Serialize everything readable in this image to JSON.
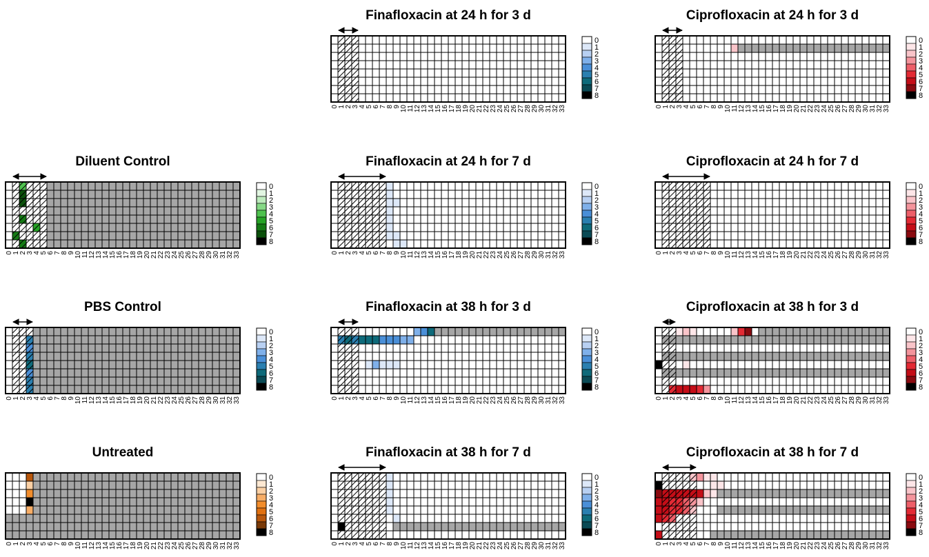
{
  "palettes": {
    "blue": [
      "#ffffff",
      "#dde8f8",
      "#b8d0f2",
      "#7fb0ea",
      "#4a8fd8",
      "#2a7fb0",
      "#0e6a7a",
      "#0a4a55",
      "#000000"
    ],
    "red": [
      "#ffffff",
      "#fde6e8",
      "#f9c4c9",
      "#f4949c",
      "#ee5f69",
      "#e32a34",
      "#c40d17",
      "#8a0a10",
      "#000000"
    ],
    "green": [
      "#ffffff",
      "#e2f6e2",
      "#bdebbd",
      "#86d986",
      "#4fc24f",
      "#26a326",
      "#157a15",
      "#0b500b",
      "#000000"
    ],
    "orange": [
      "#ffffff",
      "#fde8d2",
      "#fbd0a4",
      "#f7ad66",
      "#f28d2c",
      "#e07010",
      "#b8570c",
      "#7a3a08",
      "#000000"
    ],
    "excluded": "#a6a6a6"
  },
  "chart_data": [
    {
      "type": "heatmap",
      "title": "Finafloxacin at 24 h for 3 d",
      "palette": "blue",
      "cols": 34,
      "rows": 8,
      "treat": [
        1,
        3
      ],
      "legend_levels": [
        "0",
        "1",
        "2",
        "3",
        "4",
        "5",
        "6",
        "7",
        "8"
      ],
      "x_ticks": [
        "0",
        "1",
        "2",
        "3",
        "4",
        "5",
        "6",
        "7",
        "8",
        "9",
        "10",
        "11",
        "12",
        "13",
        "14",
        "15",
        "16",
        "17",
        "18",
        "19",
        "20",
        "21",
        "22",
        "23",
        "24",
        "25",
        "26",
        "27",
        "28",
        "29",
        "30",
        "31",
        "32",
        "33"
      ],
      "excluded": [],
      "cells": []
    },
    {
      "type": "heatmap",
      "title": "Ciprofloxacin at 24 h for 3 d",
      "palette": "red",
      "cols": 34,
      "rows": 8,
      "treat": [
        1,
        3
      ],
      "legend_levels": [
        "0",
        "1",
        "2",
        "3",
        "4",
        "5",
        "6",
        "7",
        "8"
      ],
      "x_ticks": [
        "0",
        "1",
        "2",
        "3",
        "4",
        "5",
        "6",
        "7",
        "8",
        "9",
        "10",
        "11",
        "12",
        "13",
        "14",
        "15",
        "16",
        "17",
        "18",
        "19",
        "20",
        "21",
        "22",
        "23",
        "24",
        "25",
        "26",
        "27",
        "28",
        "29",
        "30",
        "31",
        "32",
        "33"
      ],
      "excluded": [
        [
          1,
          12,
          33
        ]
      ],
      "cells": [
        [
          1,
          11,
          2
        ]
      ]
    },
    {
      "type": "heatmap",
      "title": "Diluent Control",
      "palette": "green",
      "cols": 34,
      "rows": 8,
      "treat": [
        1,
        5
      ],
      "legend_levels": [
        "0",
        "1",
        "2",
        "3",
        "4",
        "5",
        "6",
        "7",
        "8"
      ],
      "x_ticks": [
        "0",
        "1",
        "2",
        "3",
        "4",
        "5",
        "6",
        "7",
        "8",
        "9",
        "10",
        "11",
        "12",
        "13",
        "14",
        "15",
        "16",
        "17",
        "18",
        "19",
        "20",
        "21",
        "22",
        "23",
        "24",
        "25",
        "26",
        "27",
        "28",
        "29",
        "30",
        "31",
        "32",
        "33"
      ],
      "excluded": [
        [
          0,
          6,
          33
        ],
        [
          1,
          6,
          33
        ],
        [
          2,
          6,
          33
        ],
        [
          3,
          6,
          33
        ],
        [
          4,
          6,
          33
        ],
        [
          5,
          6,
          33
        ],
        [
          6,
          6,
          33
        ],
        [
          7,
          6,
          33
        ]
      ],
      "cells": [
        [
          0,
          2,
          4
        ],
        [
          1,
          2,
          7
        ],
        [
          2,
          2,
          7
        ],
        [
          4,
          2,
          6
        ],
        [
          5,
          4,
          5
        ],
        [
          6,
          1,
          6
        ],
        [
          7,
          2,
          6
        ]
      ]
    },
    {
      "type": "heatmap",
      "title": "Finafloxacin at 24 h for 7 d",
      "palette": "blue",
      "cols": 34,
      "rows": 8,
      "treat": [
        1,
        7
      ],
      "legend_levels": [
        "0",
        "1",
        "2",
        "3",
        "4",
        "5",
        "6",
        "7",
        "8"
      ],
      "x_ticks": [
        "0",
        "1",
        "2",
        "3",
        "4",
        "5",
        "6",
        "7",
        "8",
        "9",
        "10",
        "11",
        "12",
        "13",
        "14",
        "15",
        "16",
        "17",
        "18",
        "19",
        "20",
        "21",
        "22",
        "23",
        "24",
        "25",
        "26",
        "27",
        "28",
        "29",
        "30",
        "31",
        "32",
        "33"
      ],
      "excluded": [],
      "cells": [
        [
          0,
          8,
          1
        ],
        [
          1,
          8,
          1
        ],
        [
          2,
          8,
          1
        ],
        [
          2,
          9,
          1
        ],
        [
          3,
          8,
          1
        ],
        [
          4,
          8,
          1
        ],
        [
          5,
          8,
          1
        ],
        [
          6,
          8,
          1
        ],
        [
          6,
          9,
          1
        ],
        [
          7,
          9,
          1
        ],
        [
          7,
          10,
          1
        ]
      ]
    },
    {
      "type": "heatmap",
      "title": "Ciprofloxacin at 24 h for 7 d",
      "palette": "red",
      "cols": 34,
      "rows": 8,
      "treat": [
        1,
        7
      ],
      "legend_levels": [
        "0",
        "1",
        "2",
        "3",
        "4",
        "5",
        "6",
        "7",
        "8"
      ],
      "x_ticks": [
        "0",
        "1",
        "2",
        "3",
        "4",
        "5",
        "6",
        "7",
        "8",
        "9",
        "10",
        "11",
        "12",
        "13",
        "14",
        "15",
        "16",
        "17",
        "18",
        "19",
        "20",
        "21",
        "22",
        "23",
        "24",
        "25",
        "26",
        "27",
        "28",
        "29",
        "30",
        "31",
        "32",
        "33"
      ],
      "excluded": [],
      "cells": []
    },
    {
      "type": "heatmap",
      "title": "PBS Control",
      "palette": "blue",
      "cols": 34,
      "rows": 8,
      "treat": [
        1,
        3
      ],
      "legend_levels": [
        "0",
        "1",
        "2",
        "3",
        "4",
        "5",
        "6",
        "7",
        "8"
      ],
      "x_ticks": [
        "0",
        "1",
        "2",
        "3",
        "4",
        "5",
        "6",
        "7",
        "8",
        "9",
        "10",
        "11",
        "12",
        "13",
        "14",
        "15",
        "16",
        "17",
        "18",
        "19",
        "20",
        "21",
        "22",
        "23",
        "24",
        "25",
        "26",
        "27",
        "28",
        "29",
        "30",
        "31",
        "32",
        "33"
      ],
      "excluded": [
        [
          0,
          4,
          33
        ],
        [
          1,
          4,
          33
        ],
        [
          2,
          4,
          33
        ],
        [
          3,
          4,
          33
        ],
        [
          4,
          4,
          33
        ],
        [
          5,
          4,
          33
        ],
        [
          6,
          4,
          33
        ],
        [
          7,
          4,
          33
        ]
      ],
      "cells": [
        [
          1,
          3,
          5
        ],
        [
          2,
          3,
          4
        ],
        [
          3,
          3,
          5
        ],
        [
          4,
          3,
          6
        ],
        [
          5,
          3,
          4
        ],
        [
          6,
          3,
          5
        ],
        [
          7,
          3,
          5
        ]
      ]
    },
    {
      "type": "heatmap",
      "title": "Finafloxacin at 38 h for 3 d",
      "palette": "blue",
      "cols": 34,
      "rows": 8,
      "treat": [
        1,
        3
      ],
      "legend_levels": [
        "0",
        "1",
        "2",
        "3",
        "4",
        "5",
        "6",
        "7",
        "8"
      ],
      "x_ticks": [
        "0",
        "1",
        "2",
        "3",
        "4",
        "5",
        "6",
        "7",
        "8",
        "9",
        "10",
        "11",
        "12",
        "13",
        "14",
        "15",
        "16",
        "17",
        "18",
        "19",
        "20",
        "21",
        "22",
        "23",
        "24",
        "25",
        "26",
        "27",
        "28",
        "29",
        "30",
        "31",
        "32",
        "33"
      ],
      "excluded": [
        [
          0,
          15,
          33
        ]
      ],
      "cells": [
        [
          0,
          12,
          3
        ],
        [
          0,
          13,
          4
        ],
        [
          0,
          14,
          6
        ],
        [
          1,
          1,
          5
        ],
        [
          1,
          2,
          6
        ],
        [
          1,
          3,
          5
        ],
        [
          1,
          4,
          6
        ],
        [
          1,
          5,
          6
        ],
        [
          1,
          6,
          6
        ],
        [
          1,
          7,
          4
        ],
        [
          1,
          8,
          4
        ],
        [
          1,
          9,
          4
        ],
        [
          1,
          10,
          3
        ],
        [
          1,
          11,
          3
        ],
        [
          4,
          5,
          1
        ],
        [
          4,
          6,
          3
        ],
        [
          4,
          7,
          1
        ],
        [
          4,
          8,
          1
        ],
        [
          4,
          9,
          1
        ]
      ]
    },
    {
      "type": "heatmap",
      "title": "Ciprofloxacin at 38 h for 3 d",
      "palette": "red",
      "cols": 34,
      "rows": 8,
      "treat": [
        1,
        2
      ],
      "legend_levels": [
        "0",
        "1",
        "2",
        "3",
        "4",
        "5",
        "6",
        "7",
        "8"
      ],
      "x_ticks": [
        "0",
        "1",
        "2",
        "3",
        "4",
        "5",
        "6",
        "7",
        "8",
        "9",
        "10",
        "11",
        "12",
        "13",
        "14",
        "15",
        "16",
        "17",
        "18",
        "19",
        "20",
        "21",
        "22",
        "23",
        "24",
        "25",
        "26",
        "27",
        "28",
        "29",
        "30",
        "31",
        "32",
        "33"
      ],
      "excluded": [
        [
          0,
          15,
          33
        ],
        [
          1,
          1,
          33
        ],
        [
          3,
          1,
          33
        ],
        [
          5,
          1,
          33
        ]
      ],
      "cells": [
        [
          0,
          3,
          1
        ],
        [
          0,
          4,
          2
        ],
        [
          0,
          5,
          1
        ],
        [
          0,
          11,
          2
        ],
        [
          0,
          12,
          5
        ],
        [
          0,
          13,
          7
        ],
        [
          4,
          0,
          8
        ],
        [
          4,
          4,
          1
        ],
        [
          7,
          2,
          5
        ],
        [
          7,
          3,
          6
        ],
        [
          7,
          4,
          6
        ],
        [
          7,
          5,
          6
        ],
        [
          7,
          6,
          5
        ],
        [
          7,
          7,
          3
        ]
      ]
    },
    {
      "type": "heatmap",
      "title": "Untreated",
      "palette": "orange",
      "cols": 34,
      "rows": 8,
      "treat": null,
      "legend_levels": [
        "0",
        "1",
        "2",
        "3",
        "4",
        "5",
        "6",
        "7",
        "8"
      ],
      "x_ticks": [
        "0",
        "1",
        "2",
        "3",
        "4",
        "5",
        "6",
        "7",
        "8",
        "9",
        "10",
        "11",
        "12",
        "13",
        "14",
        "15",
        "16",
        "17",
        "18",
        "19",
        "20",
        "21",
        "22",
        "23",
        "24",
        "25",
        "26",
        "27",
        "28",
        "29",
        "30",
        "31",
        "32",
        "33"
      ],
      "excluded": [
        [
          0,
          4,
          33
        ],
        [
          1,
          4,
          33
        ],
        [
          2,
          4,
          33
        ],
        [
          3,
          4,
          33
        ],
        [
          4,
          4,
          33
        ],
        [
          5,
          0,
          33
        ],
        [
          6,
          0,
          33
        ],
        [
          7,
          0,
          33
        ]
      ],
      "cells": [
        [
          0,
          3,
          6
        ],
        [
          1,
          3,
          2
        ],
        [
          2,
          3,
          4
        ],
        [
          3,
          3,
          8
        ],
        [
          4,
          3,
          3
        ]
      ]
    },
    {
      "type": "heatmap",
      "title": "Finafloxacin at 38 h for 7 d",
      "palette": "blue",
      "cols": 34,
      "rows": 8,
      "treat": [
        1,
        7
      ],
      "legend_levels": [
        "0",
        "1",
        "2",
        "3",
        "4",
        "5",
        "6",
        "7",
        "8"
      ],
      "x_ticks": [
        "0",
        "1",
        "2",
        "3",
        "4",
        "5",
        "6",
        "7",
        "8",
        "9",
        "10",
        "11",
        "12",
        "13",
        "14",
        "15",
        "16",
        "17",
        "18",
        "19",
        "20",
        "21",
        "22",
        "23",
        "24",
        "25",
        "26",
        "27",
        "28",
        "29",
        "30",
        "31",
        "32",
        "33"
      ],
      "excluded": [
        [
          6,
          9,
          33
        ]
      ],
      "cells": [
        [
          0,
          8,
          1
        ],
        [
          1,
          8,
          1
        ],
        [
          2,
          8,
          1
        ],
        [
          3,
          8,
          1
        ],
        [
          4,
          8,
          1
        ],
        [
          5,
          9,
          1
        ],
        [
          6,
          1,
          8
        ]
      ]
    },
    {
      "type": "heatmap",
      "title": "Ciprofloxacin at 38 h for 7 d",
      "palette": "red",
      "cols": 34,
      "rows": 8,
      "treat": [
        1,
        5
      ],
      "legend_levels": [
        "0",
        "1",
        "2",
        "3",
        "4",
        "5",
        "6",
        "7",
        "8"
      ],
      "x_ticks": [
        "0",
        "1",
        "2",
        "3",
        "4",
        "5",
        "6",
        "7",
        "8",
        "9",
        "10",
        "11",
        "12",
        "13",
        "14",
        "15",
        "16",
        "17",
        "18",
        "19",
        "20",
        "21",
        "22",
        "23",
        "24",
        "25",
        "26",
        "27",
        "28",
        "29",
        "30",
        "31",
        "32",
        "33"
      ],
      "excluded": [
        [
          2,
          9,
          33
        ],
        [
          4,
          9,
          33
        ],
        [
          7,
          8,
          33
        ]
      ],
      "cells": [
        [
          0,
          5,
          2
        ],
        [
          0,
          6,
          3
        ],
        [
          0,
          7,
          1
        ],
        [
          0,
          8,
          1
        ],
        [
          1,
          0,
          8
        ],
        [
          1,
          8,
          1
        ],
        [
          1,
          9,
          1
        ],
        [
          2,
          0,
          7
        ],
        [
          2,
          1,
          6
        ],
        [
          2,
          2,
          6
        ],
        [
          2,
          3,
          6
        ],
        [
          2,
          4,
          6
        ],
        [
          2,
          5,
          6
        ],
        [
          2,
          6,
          6
        ],
        [
          2,
          7,
          2
        ],
        [
          2,
          8,
          1
        ],
        [
          3,
          0,
          6
        ],
        [
          3,
          1,
          6
        ],
        [
          3,
          2,
          5
        ],
        [
          3,
          3,
          5
        ],
        [
          3,
          4,
          4
        ],
        [
          3,
          5,
          3
        ],
        [
          3,
          6,
          2
        ],
        [
          4,
          0,
          6
        ],
        [
          4,
          1,
          6
        ],
        [
          4,
          2,
          5
        ],
        [
          4,
          3,
          5
        ],
        [
          4,
          4,
          4
        ],
        [
          4,
          5,
          2
        ],
        [
          5,
          0,
          6
        ],
        [
          5,
          1,
          5
        ],
        [
          5,
          2,
          4
        ],
        [
          7,
          0,
          6
        ]
      ]
    }
  ]
}
